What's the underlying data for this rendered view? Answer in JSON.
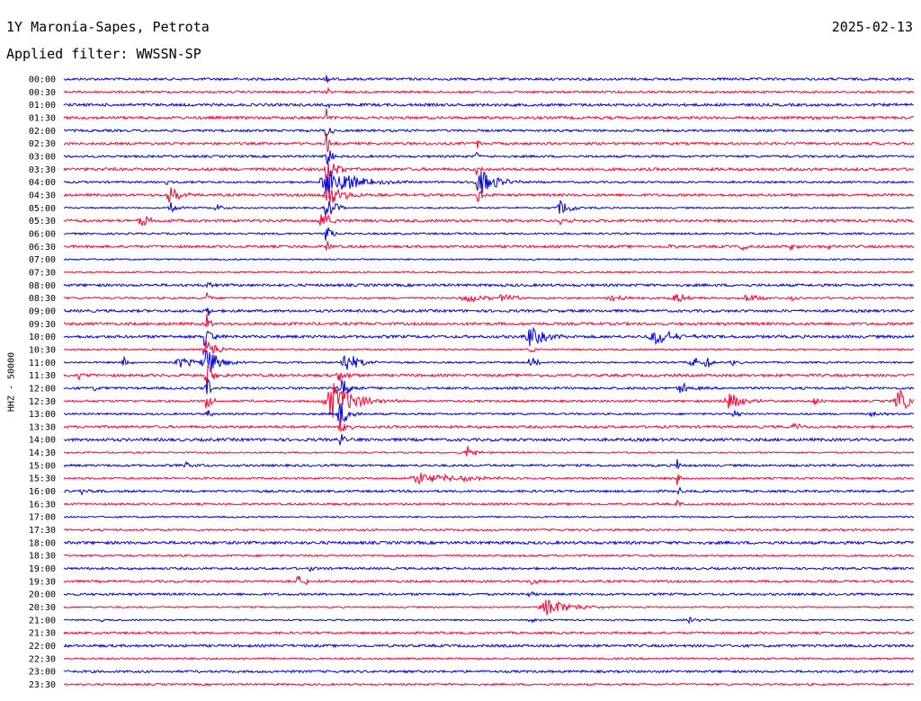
{
  "header": {
    "station": "1Y Maronia-Sapes, Petrota",
    "date": "2025-02-13",
    "filter": "Applied filter: WWSSN-SP"
  },
  "chart_data": {
    "type": "seismogram",
    "ylabel": "HHZ - 50000",
    "colors": {
      "odd_trace": "#0000e0",
      "even_trace": "#ff0033"
    },
    "traces": [
      "00:00",
      "00:30",
      "01:00",
      "01:30",
      "02:00",
      "02:30",
      "03:00",
      "03:30",
      "04:00",
      "04:30",
      "05:00",
      "05:30",
      "06:00",
      "06:30",
      "07:00",
      "07:30",
      "08:00",
      "08:30",
      "09:00",
      "09:30",
      "10:00",
      "10:30",
      "11:00",
      "11:30",
      "12:00",
      "12:30",
      "13:00",
      "13:30",
      "14:00",
      "14:30",
      "15:00",
      "15:30",
      "16:00",
      "16:30",
      "17:00",
      "17:30",
      "18:00",
      "18:30",
      "19:00",
      "19:30",
      "20:00",
      "20:30",
      "21:00",
      "21:30",
      "22:00",
      "22:30",
      "23:00",
      "23:30"
    ]
  }
}
